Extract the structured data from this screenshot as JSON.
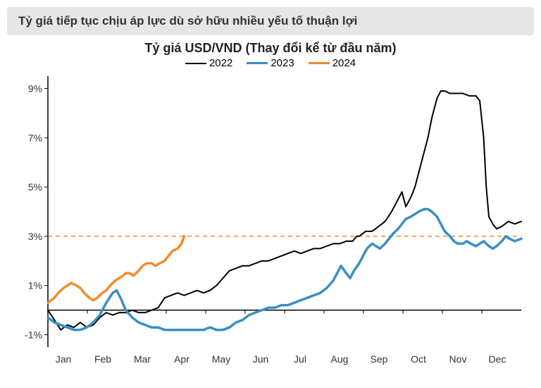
{
  "header": "Tỷ giá tiếp tục chịu áp lực dù sở hữu nhiều yếu tố thuận lợi",
  "chart": {
    "type": "line",
    "title": "Tỷ giá USD/VND (Thay đổi kể từ đầu năm)",
    "legend": [
      {
        "label": "2022",
        "color": "#000000",
        "width": 2
      },
      {
        "label": "2023",
        "color": "#3a8fc4",
        "width": 3.5
      },
      {
        "label": "2024",
        "color": "#f08c2e",
        "width": 3.5
      }
    ],
    "x_months": [
      "Jan",
      "Feb",
      "Mar",
      "Apr",
      "May",
      "Jun",
      "Jul",
      "Aug",
      "Sep",
      "Oct",
      "Nov",
      "Dec"
    ],
    "x_range_days": 365,
    "y_ticks": [
      -1,
      1,
      3,
      5,
      7,
      9
    ],
    "y_tick_format": "percent",
    "ylim": [
      -1.5,
      9.5
    ],
    "reference_line": {
      "y": 3,
      "color": "#f08c2e",
      "dash": "6,5",
      "width": 1.5
    },
    "axis_color": "#000000",
    "background_color": "#ffffff",
    "title_fontsize": 18,
    "label_fontsize": 14,
    "series": {
      "2022": [
        [
          0,
          0.0
        ],
        [
          5,
          -0.4
        ],
        [
          10,
          -0.8
        ],
        [
          15,
          -0.6
        ],
        [
          20,
          -0.7
        ],
        [
          25,
          -0.5
        ],
        [
          30,
          -0.7
        ],
        [
          35,
          -0.6
        ],
        [
          40,
          -0.3
        ],
        [
          45,
          -0.1
        ],
        [
          50,
          -0.2
        ],
        [
          55,
          -0.1
        ],
        [
          60,
          -0.1
        ],
        [
          65,
          0.0
        ],
        [
          70,
          -0.1
        ],
        [
          75,
          -0.1
        ],
        [
          80,
          0.0
        ],
        [
          85,
          0.1
        ],
        [
          90,
          0.5
        ],
        [
          95,
          0.6
        ],
        [
          100,
          0.7
        ],
        [
          105,
          0.6
        ],
        [
          110,
          0.7
        ],
        [
          115,
          0.8
        ],
        [
          120,
          0.7
        ],
        [
          125,
          0.8
        ],
        [
          130,
          1.0
        ],
        [
          135,
          1.3
        ],
        [
          140,
          1.6
        ],
        [
          145,
          1.7
        ],
        [
          150,
          1.8
        ],
        [
          155,
          1.8
        ],
        [
          160,
          1.9
        ],
        [
          165,
          2.0
        ],
        [
          170,
          2.0
        ],
        [
          175,
          2.1
        ],
        [
          180,
          2.2
        ],
        [
          185,
          2.3
        ],
        [
          190,
          2.4
        ],
        [
          195,
          2.3
        ],
        [
          200,
          2.4
        ],
        [
          205,
          2.5
        ],
        [
          210,
          2.5
        ],
        [
          215,
          2.6
        ],
        [
          220,
          2.7
        ],
        [
          225,
          2.7
        ],
        [
          230,
          2.8
        ],
        [
          235,
          2.8
        ],
        [
          238,
          3.0
        ],
        [
          240,
          3.0
        ],
        [
          245,
          3.2
        ],
        [
          250,
          3.2
        ],
        [
          255,
          3.4
        ],
        [
          260,
          3.6
        ],
        [
          265,
          4.0
        ],
        [
          270,
          4.5
        ],
        [
          273,
          4.8
        ],
        [
          276,
          4.2
        ],
        [
          280,
          4.6
        ],
        [
          283,
          5.0
        ],
        [
          286,
          5.6
        ],
        [
          290,
          6.4
        ],
        [
          293,
          7.0
        ],
        [
          296,
          7.8
        ],
        [
          300,
          8.6
        ],
        [
          303,
          8.9
        ],
        [
          306,
          8.9
        ],
        [
          310,
          8.8
        ],
        [
          315,
          8.8
        ],
        [
          320,
          8.8
        ],
        [
          325,
          8.7
        ],
        [
          328,
          8.7
        ],
        [
          330,
          8.7
        ],
        [
          333,
          8.5
        ],
        [
          336,
          7.0
        ],
        [
          338,
          5.0
        ],
        [
          340,
          3.8
        ],
        [
          343,
          3.5
        ],
        [
          346,
          3.3
        ],
        [
          350,
          3.4
        ],
        [
          355,
          3.6
        ],
        [
          360,
          3.5
        ],
        [
          365,
          3.6
        ]
      ],
      "2023": [
        [
          0,
          -0.3
        ],
        [
          5,
          -0.5
        ],
        [
          10,
          -0.6
        ],
        [
          15,
          -0.7
        ],
        [
          20,
          -0.8
        ],
        [
          25,
          -0.8
        ],
        [
          30,
          -0.7
        ],
        [
          35,
          -0.5
        ],
        [
          40,
          -0.2
        ],
        [
          45,
          0.3
        ],
        [
          50,
          0.7
        ],
        [
          53,
          0.8
        ],
        [
          56,
          0.5
        ],
        [
          60,
          0.0
        ],
        [
          65,
          -0.3
        ],
        [
          70,
          -0.5
        ],
        [
          75,
          -0.6
        ],
        [
          80,
          -0.7
        ],
        [
          85,
          -0.7
        ],
        [
          90,
          -0.8
        ],
        [
          95,
          -0.8
        ],
        [
          100,
          -0.8
        ],
        [
          105,
          -0.8
        ],
        [
          110,
          -0.8
        ],
        [
          115,
          -0.8
        ],
        [
          120,
          -0.8
        ],
        [
          125,
          -0.7
        ],
        [
          130,
          -0.8
        ],
        [
          135,
          -0.8
        ],
        [
          140,
          -0.7
        ],
        [
          145,
          -0.5
        ],
        [
          150,
          -0.4
        ],
        [
          155,
          -0.2
        ],
        [
          160,
          -0.1
        ],
        [
          165,
          0.0
        ],
        [
          170,
          0.1
        ],
        [
          175,
          0.1
        ],
        [
          180,
          0.2
        ],
        [
          185,
          0.2
        ],
        [
          190,
          0.3
        ],
        [
          195,
          0.4
        ],
        [
          200,
          0.5
        ],
        [
          205,
          0.6
        ],
        [
          210,
          0.7
        ],
        [
          215,
          0.9
        ],
        [
          220,
          1.2
        ],
        [
          223,
          1.5
        ],
        [
          226,
          1.8
        ],
        [
          230,
          1.5
        ],
        [
          233,
          1.3
        ],
        [
          236,
          1.6
        ],
        [
          240,
          1.9
        ],
        [
          243,
          2.2
        ],
        [
          246,
          2.5
        ],
        [
          250,
          2.7
        ],
        [
          253,
          2.6
        ],
        [
          256,
          2.5
        ],
        [
          260,
          2.7
        ],
        [
          263,
          2.9
        ],
        [
          266,
          3.1
        ],
        [
          270,
          3.3
        ],
        [
          273,
          3.5
        ],
        [
          276,
          3.7
        ],
        [
          280,
          3.8
        ],
        [
          283,
          3.9
        ],
        [
          286,
          4.0
        ],
        [
          290,
          4.1
        ],
        [
          293,
          4.1
        ],
        [
          296,
          4.0
        ],
        [
          300,
          3.8
        ],
        [
          303,
          3.5
        ],
        [
          306,
          3.2
        ],
        [
          310,
          3.0
        ],
        [
          313,
          2.8
        ],
        [
          316,
          2.7
        ],
        [
          320,
          2.7
        ],
        [
          323,
          2.8
        ],
        [
          326,
          2.7
        ],
        [
          330,
          2.6
        ],
        [
          333,
          2.7
        ],
        [
          336,
          2.8
        ],
        [
          340,
          2.6
        ],
        [
          343,
          2.5
        ],
        [
          346,
          2.6
        ],
        [
          350,
          2.8
        ],
        [
          353,
          3.0
        ],
        [
          356,
          2.9
        ],
        [
          360,
          2.8
        ],
        [
          365,
          2.9
        ]
      ],
      "2024": [
        [
          0,
          0.3
        ],
        [
          5,
          0.5
        ],
        [
          8,
          0.7
        ],
        [
          12,
          0.9
        ],
        [
          15,
          1.0
        ],
        [
          18,
          1.1
        ],
        [
          22,
          1.0
        ],
        [
          25,
          0.9
        ],
        [
          28,
          0.7
        ],
        [
          32,
          0.5
        ],
        [
          35,
          0.4
        ],
        [
          38,
          0.5
        ],
        [
          42,
          0.7
        ],
        [
          45,
          0.8
        ],
        [
          48,
          1.0
        ],
        [
          52,
          1.2
        ],
        [
          55,
          1.3
        ],
        [
          58,
          1.4
        ],
        [
          60,
          1.5
        ],
        [
          63,
          1.5
        ],
        [
          66,
          1.4
        ],
        [
          70,
          1.6
        ],
        [
          73,
          1.8
        ],
        [
          76,
          1.9
        ],
        [
          80,
          1.9
        ],
        [
          83,
          1.8
        ],
        [
          86,
          1.9
        ],
        [
          90,
          2.0
        ],
        [
          93,
          2.2
        ],
        [
          96,
          2.4
        ],
        [
          100,
          2.5
        ],
        [
          103,
          2.7
        ],
        [
          105,
          3.0
        ]
      ]
    }
  }
}
